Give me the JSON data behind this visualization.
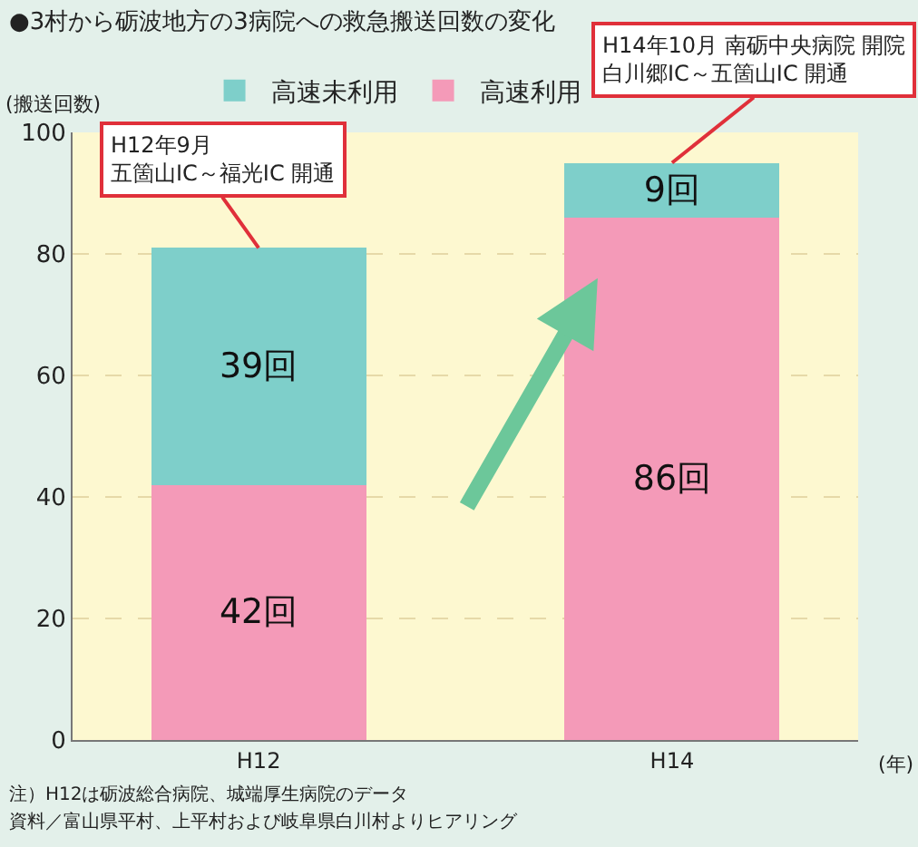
{
  "chart_data": {
    "type": "bar",
    "title": "●3村から砺波地方の3病院への救急搬送回数の変化",
    "ylabel": "(搬送回数)",
    "xlabel": "(年)",
    "categories": [
      "H12",
      "H14"
    ],
    "stacked": true,
    "series": [
      {
        "name": "高速利用",
        "color": "#f49ab8",
        "values": [
          42,
          86
        ],
        "value_labels": [
          "42回",
          "86回"
        ]
      },
      {
        "name": "高速未利用",
        "color": "#7ecfca",
        "values": [
          39,
          9
        ],
        "value_labels": [
          "39回",
          "9回"
        ]
      }
    ],
    "ylim": [
      0,
      100
    ],
    "yticks": [
      0,
      20,
      40,
      60,
      80,
      100
    ],
    "grid": "y",
    "legend": "top left",
    "annotations": [
      {
        "text": "H12年9月五箇山IC～福光IC 開通",
        "x": "H12",
        "y": 81
      },
      {
        "text": "H14年10月 南砺中央病院 開院白川郷IC～五箇山IC 開通",
        "x": "H14",
        "y": 95
      },
      "注）H12は砺波総合病院、城端厚生病院のデータ",
      "資料／富山県平村、上平村および岐阜県白川村よりヒアリング"
    ]
  }
}
